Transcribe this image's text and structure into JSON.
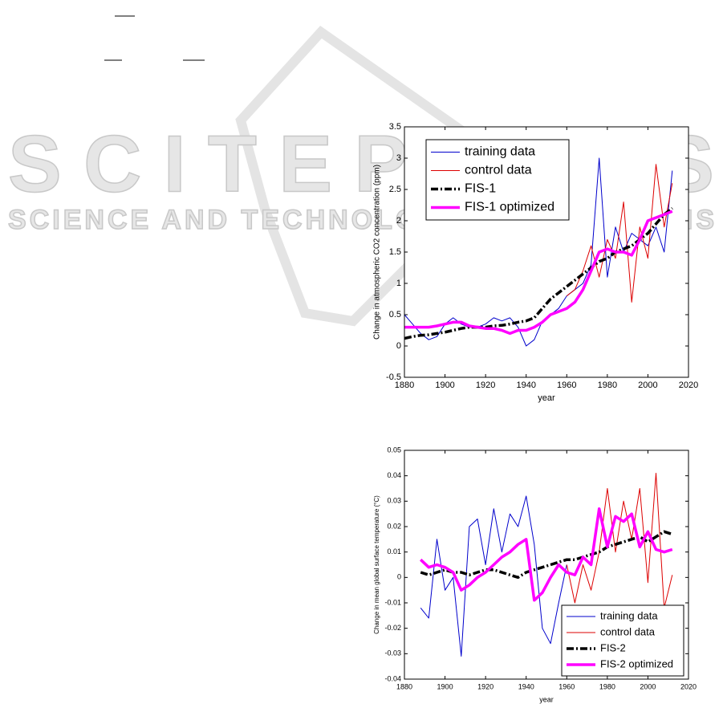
{
  "watermark": {
    "title": "SCITEPRESS",
    "subtitle": "SCIENCE AND TECHNOLOGY PUBLICATIONS"
  },
  "chart_data": [
    {
      "type": "line",
      "xlabel": "year",
      "ylabel": "Change in atmospheric CO2 concentration (ppm)",
      "x": [
        1880,
        1884,
        1888,
        1892,
        1896,
        1900,
        1904,
        1908,
        1912,
        1916,
        1920,
        1924,
        1928,
        1932,
        1936,
        1940,
        1944,
        1948,
        1952,
        1956,
        1960,
        1964,
        1968,
        1972,
        1976,
        1980,
        1984,
        1988,
        1992,
        1996,
        2000,
        2004,
        2008,
        2012
      ],
      "xlim": [
        1880,
        2020
      ],
      "xticks": [
        1880,
        1900,
        1920,
        1940,
        1960,
        1980,
        2000,
        2020
      ],
      "ylim": [
        -0.5,
        3.5
      ],
      "yticks": [
        -0.5,
        0,
        0.5,
        1,
        1.5,
        2,
        2.5,
        3,
        3.5
      ],
      "legend": "upper left",
      "series": [
        {
          "name": "training data",
          "color": "#0000cc",
          "linestyle": "solid",
          "bold": false,
          "values": [
            0.5,
            0.35,
            0.2,
            0.1,
            0.15,
            0.35,
            0.45,
            0.35,
            0.3,
            0.3,
            0.35,
            0.45,
            0.4,
            0.45,
            0.3,
            0.0,
            0.1,
            0.4,
            0.5,
            0.6,
            0.8,
            0.9,
            1.0,
            1.3,
            3.0,
            1.1,
            1.9,
            1.5,
            1.8,
            1.7,
            1.6,
            1.9,
            1.5,
            2.8
          ]
        },
        {
          "name": "control data",
          "color": "#dd0000",
          "linestyle": "solid",
          "bold": false,
          "values": [
            null,
            null,
            null,
            null,
            null,
            null,
            null,
            null,
            null,
            null,
            null,
            null,
            null,
            null,
            null,
            null,
            null,
            null,
            null,
            null,
            0.8,
            0.9,
            1.2,
            1.6,
            1.1,
            1.7,
            1.4,
            2.3,
            0.7,
            1.9,
            1.4,
            2.9,
            1.9,
            2.6
          ]
        },
        {
          "name": "FIS-1",
          "color": "#000000",
          "linestyle": "dash-dot",
          "bold": true,
          "values": [
            0.12,
            0.15,
            0.17,
            0.18,
            0.2,
            0.22,
            0.25,
            0.28,
            0.3,
            0.3,
            0.3,
            0.32,
            0.33,
            0.35,
            0.38,
            0.4,
            0.45,
            0.6,
            0.75,
            0.85,
            0.95,
            1.05,
            1.15,
            1.25,
            1.35,
            1.4,
            1.5,
            1.55,
            1.6,
            1.7,
            1.8,
            1.95,
            2.1,
            2.2
          ]
        },
        {
          "name": "FIS-1 optimized",
          "color": "#ff00ff",
          "linestyle": "solid",
          "bold": true,
          "values": [
            0.3,
            0.3,
            0.3,
            0.3,
            0.32,
            0.35,
            0.38,
            0.38,
            0.32,
            0.3,
            0.28,
            0.28,
            0.25,
            0.2,
            0.25,
            0.25,
            0.3,
            0.38,
            0.5,
            0.55,
            0.6,
            0.7,
            0.9,
            1.2,
            1.5,
            1.55,
            1.5,
            1.5,
            1.45,
            1.7,
            2.0,
            2.05,
            2.1,
            2.15
          ]
        }
      ]
    },
    {
      "type": "line",
      "xlabel": "year",
      "ylabel": "Change in mean global surface temperature (°C)",
      "x": [
        1888,
        1892,
        1896,
        1900,
        1904,
        1908,
        1912,
        1916,
        1920,
        1924,
        1928,
        1932,
        1936,
        1940,
        1944,
        1948,
        1952,
        1956,
        1960,
        1964,
        1968,
        1972,
        1976,
        1980,
        1984,
        1988,
        1992,
        1996,
        2000,
        2004,
        2008,
        2012
      ],
      "xlim": [
        1880,
        2020
      ],
      "xticks": [
        1880,
        1900,
        1920,
        1940,
        1960,
        1980,
        2000,
        2020
      ],
      "ylim": [
        -0.04,
        0.05
      ],
      "yticks": [
        -0.04,
        -0.03,
        -0.02,
        -0.01,
        0,
        0.01,
        0.02,
        0.03,
        0.04,
        0.05
      ],
      "legend": "lower right",
      "series": [
        {
          "name": "training data",
          "color": "#0000cc",
          "linestyle": "solid",
          "bold": false,
          "values": [
            -0.012,
            -0.016,
            0.015,
            -0.005,
            0.0,
            -0.031,
            0.02,
            0.023,
            0.005,
            0.027,
            0.01,
            0.025,
            0.02,
            0.032,
            0.013,
            -0.02,
            -0.026,
            -0.01,
            0.005,
            null,
            null,
            null,
            null,
            null,
            null,
            null,
            null,
            null,
            null,
            null,
            null,
            null
          ]
        },
        {
          "name": "control data",
          "color": "#dd0000",
          "linestyle": "solid",
          "bold": false,
          "values": [
            null,
            null,
            null,
            null,
            null,
            null,
            null,
            null,
            null,
            null,
            null,
            null,
            null,
            null,
            null,
            null,
            null,
            null,
            0.005,
            -0.01,
            0.005,
            -0.005,
            0.01,
            0.035,
            0.01,
            0.03,
            0.015,
            0.035,
            -0.002,
            0.041,
            -0.012,
            0.001
          ]
        },
        {
          "name": "FIS-2",
          "color": "#000000",
          "linestyle": "dash-dot",
          "bold": true,
          "values": [
            0.002,
            0.001,
            0.002,
            0.003,
            0.002,
            0.002,
            0.001,
            0.002,
            0.003,
            0.003,
            0.002,
            0.001,
            0.0,
            0.002,
            0.003,
            0.004,
            0.005,
            0.006,
            0.007,
            0.007,
            0.008,
            0.009,
            0.01,
            0.012,
            0.013,
            0.014,
            0.015,
            0.016,
            0.014,
            0.016,
            0.018,
            0.017
          ]
        },
        {
          "name": "FIS-2 optimized",
          "color": "#ff00ff",
          "linestyle": "solid",
          "bold": true,
          "values": [
            0.007,
            0.004,
            0.005,
            0.004,
            0.002,
            -0.005,
            -0.003,
            0.0,
            0.002,
            0.005,
            0.008,
            0.01,
            0.013,
            0.015,
            -0.009,
            -0.006,
            0.0,
            0.005,
            0.002,
            0.001,
            0.008,
            0.005,
            0.027,
            0.012,
            0.024,
            0.022,
            0.025,
            0.012,
            0.018,
            0.011,
            0.01,
            0.011
          ]
        }
      ]
    }
  ]
}
